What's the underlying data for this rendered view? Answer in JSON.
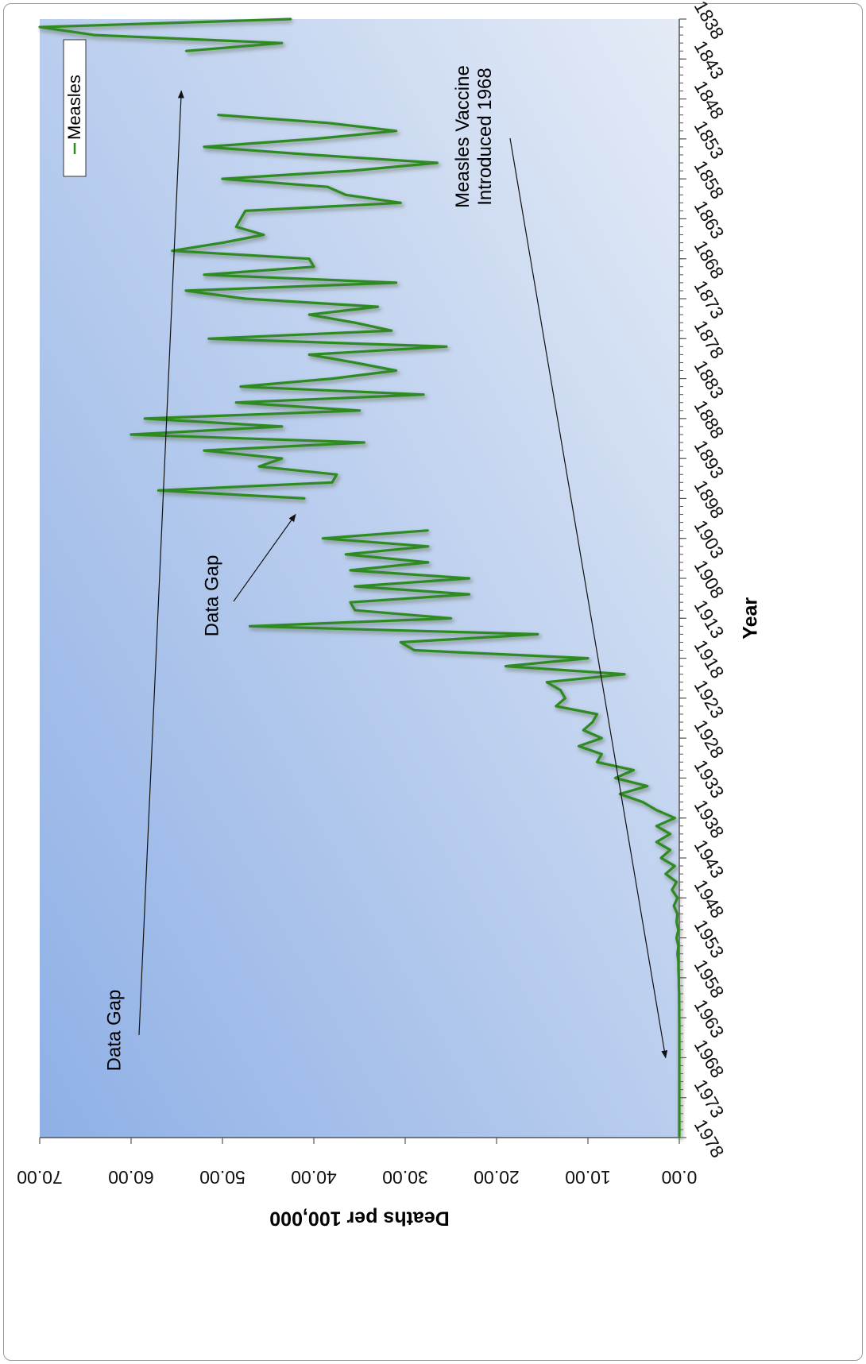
{
  "chart_data": {
    "type": "line",
    "orientation": "rotated 90° clockwise (x axis runs top-to-bottom on the right side)",
    "xlabel": "Year",
    "ylabel": "Deaths per 100,000",
    "xlim": [
      1838,
      1978
    ],
    "ylim": [
      0,
      70
    ],
    "x_ticks": [
      "1838",
      "1843",
      "1848",
      "1853",
      "1858",
      "1863",
      "1868",
      "1873",
      "1878",
      "1883",
      "1888",
      "1893",
      "1898",
      "1903",
      "1908",
      "1913",
      "1918",
      "1923",
      "1928",
      "1933",
      "1938",
      "1943",
      "1948",
      "1953",
      "1958",
      "1963",
      "1968",
      "1973",
      "1978"
    ],
    "y_ticks": [
      "0.00",
      "10.00",
      "20.00",
      "30.00",
      "40.00",
      "50.00",
      "60.00",
      "70.00"
    ],
    "grid": false,
    "legend_position": "top-left",
    "series": [
      {
        "name": "Measles",
        "color": "#2e8b22",
        "segments": [
          [
            [
              1838,
              42.5
            ],
            [
              1839,
              70
            ],
            [
              1840,
              64
            ],
            [
              1841,
              43.5
            ],
            [
              1842,
              54
            ]
          ],
          [
            [
              1850,
              50.5
            ],
            [
              1851,
              38.5
            ],
            [
              1852,
              31
            ],
            [
              1853,
              40
            ],
            [
              1854,
              52
            ],
            [
              1855,
              40
            ],
            [
              1856,
              26.5
            ],
            [
              1857,
              36
            ],
            [
              1858,
              50
            ],
            [
              1859,
              38.5
            ],
            [
              1860,
              36.5
            ],
            [
              1861,
              30.5
            ],
            [
              1862,
              47.5
            ],
            [
              1863,
              48
            ],
            [
              1864,
              48.5
            ],
            [
              1865,
              45.5
            ],
            [
              1866,
              50
            ],
            [
              1867,
              55.5
            ],
            [
              1868,
              40.5
            ],
            [
              1869,
              40
            ],
            [
              1870,
              52
            ],
            [
              1871,
              31
            ],
            [
              1872,
              54
            ],
            [
              1873,
              47.5
            ],
            [
              1874,
              33
            ],
            [
              1875,
              40.5
            ],
            [
              1876,
              35.5
            ],
            [
              1877,
              31.5
            ],
            [
              1878,
              51.5
            ],
            [
              1879,
              25.5
            ],
            [
              1880,
              40.5
            ],
            [
              1881,
              35.5
            ],
            [
              1882,
              31
            ],
            [
              1883,
              38
            ],
            [
              1884,
              48
            ],
            [
              1885,
              28
            ],
            [
              1886,
              48.5
            ],
            [
              1887,
              35
            ],
            [
              1888,
              58.5
            ],
            [
              1889,
              43.5
            ],
            [
              1890,
              60
            ],
            [
              1891,
              34.5
            ],
            [
              1892,
              52
            ],
            [
              1893,
              43.5
            ],
            [
              1894,
              46
            ],
            [
              1895,
              37.5
            ],
            [
              1896,
              38
            ],
            [
              1897,
              57
            ],
            [
              1898,
              41
            ]
          ],
          [
            [
              1902,
              27.5
            ],
            [
              1903,
              39
            ],
            [
              1904,
              27.5
            ],
            [
              1905,
              36.5
            ],
            [
              1906,
              27.5
            ],
            [
              1907,
              36
            ],
            [
              1908,
              23
            ],
            [
              1909,
              35.5
            ],
            [
              1910,
              23
            ],
            [
              1911,
              36
            ],
            [
              1912,
              35.5
            ],
            [
              1913,
              25
            ],
            [
              1914,
              47
            ],
            [
              1915,
              15.5
            ],
            [
              1916,
              30.5
            ],
            [
              1917,
              29
            ],
            [
              1918,
              10
            ],
            [
              1919,
              19
            ],
            [
              1920,
              6
            ],
            [
              1921,
              14.5
            ],
            [
              1922,
              13
            ],
            [
              1923,
              12.5
            ],
            [
              1924,
              13.5
            ],
            [
              1925,
              9
            ],
            [
              1926,
              9.5
            ],
            [
              1927,
              10.5
            ],
            [
              1928,
              8.5
            ],
            [
              1929,
              11
            ],
            [
              1930,
              8.5
            ],
            [
              1931,
              9
            ],
            [
              1932,
              5
            ],
            [
              1933,
              7
            ],
            [
              1934,
              3.5
            ],
            [
              1935,
              6.5
            ],
            [
              1936,
              4
            ],
            [
              1937,
              2.5
            ],
            [
              1938,
              0.5
            ],
            [
              1939,
              2.5
            ],
            [
              1940,
              1
            ],
            [
              1941,
              2.5
            ],
            [
              1942,
              1
            ],
            [
              1943,
              2
            ],
            [
              1944,
              0.5
            ],
            [
              1945,
              1.5
            ],
            [
              1946,
              0.3
            ],
            [
              1947,
              0.8
            ],
            [
              1948,
              0.2
            ],
            [
              1949,
              0.6
            ],
            [
              1950,
              0.2
            ],
            [
              1951,
              0.3
            ],
            [
              1952,
              0.1
            ],
            [
              1953,
              0.3
            ],
            [
              1954,
              0.1
            ],
            [
              1955,
              0.2
            ],
            [
              1956,
              0.1
            ],
            [
              1957,
              0.1
            ],
            [
              1958,
              0.05
            ],
            [
              1959,
              0.05
            ],
            [
              1960,
              0.02
            ],
            [
              1961,
              0.02
            ],
            [
              1962,
              0.01
            ],
            [
              1963,
              0.01
            ],
            [
              1964,
              0
            ],
            [
              1965,
              0
            ],
            [
              1966,
              0
            ],
            [
              1967,
              0
            ],
            [
              1968,
              0
            ],
            [
              1969,
              0
            ],
            [
              1970,
              0
            ],
            [
              1971,
              0
            ],
            [
              1972,
              0
            ],
            [
              1973,
              0
            ],
            [
              1974,
              0
            ],
            [
              1975,
              0
            ],
            [
              1976,
              0
            ],
            [
              1977,
              0
            ],
            [
              1978,
              0
            ]
          ]
        ]
      }
    ],
    "annotations": [
      {
        "text": "Data Gap",
        "points_to_x": 1847,
        "points_to_y": 54.5
      },
      {
        "text": "Data Gap",
        "points_to_x": 1900,
        "points_to_y": 42
      },
      {
        "lines": [
          "Measles Vaccine",
          "Introduced 1968"
        ],
        "points_to_x": 1968,
        "points_to_y": 1.5
      }
    ]
  },
  "colors": {
    "plot_gradient_start": "#8fb0e6",
    "plot_gradient_end": "#e4ebf6",
    "line": "#2e8b22",
    "line_shadow": "#6f7b6c"
  }
}
